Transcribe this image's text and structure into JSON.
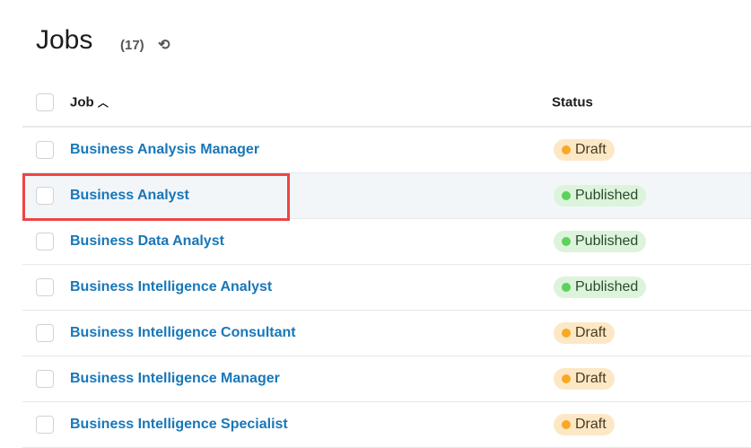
{
  "header": {
    "title": "Jobs",
    "count": "(17)",
    "refresh_icon": "refresh-icon"
  },
  "table": {
    "columns": {
      "job": "Job",
      "sort_indicator": "^",
      "status": "Status"
    },
    "rows": [
      {
        "job": "Business Analysis Manager",
        "status": "Draft"
      },
      {
        "job": "Business Analyst",
        "status": "Published"
      },
      {
        "job": "Business Data Analyst",
        "status": "Published"
      },
      {
        "job": "Business Intelligence Analyst",
        "status": "Published"
      },
      {
        "job": "Business Intelligence Consultant",
        "status": "Draft"
      },
      {
        "job": "Business Intelligence Manager",
        "status": "Draft"
      },
      {
        "job": "Business Intelligence Specialist",
        "status": "Draft"
      }
    ]
  },
  "colors": {
    "link": "#1877b8",
    "draft": "#f9a825",
    "published": "#5cd15c",
    "highlight": "#ef4444"
  }
}
